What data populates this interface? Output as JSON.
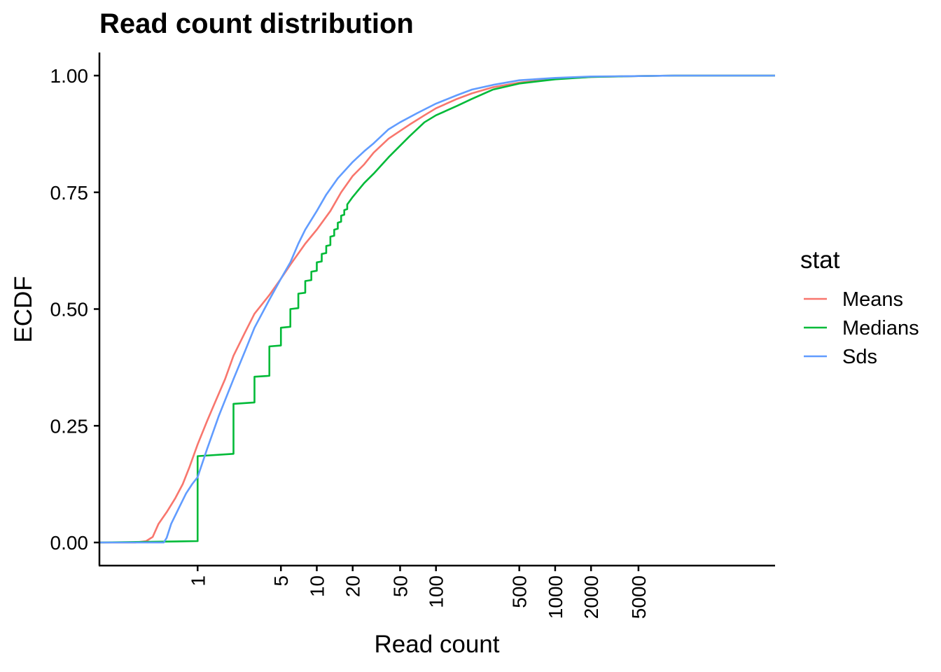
{
  "chart_data": {
    "type": "line",
    "title": "Read count distribution",
    "xlabel": "Read count",
    "ylabel": "ECDF",
    "x_scale": "log10",
    "xlim": [
      0.15,
      70000
    ],
    "ylim": [
      0,
      1
    ],
    "x_ticks": [
      {
        "value": 1,
        "label": "1"
      },
      {
        "value": 5,
        "label": "5"
      },
      {
        "value": 10,
        "label": "10"
      },
      {
        "value": 20,
        "label": "20"
      },
      {
        "value": 50,
        "label": "50"
      },
      {
        "value": 100,
        "label": "100"
      },
      {
        "value": 500,
        "label": "500"
      },
      {
        "value": 1000,
        "label": "1000"
      },
      {
        "value": 2000,
        "label": "2000"
      },
      {
        "value": 5000,
        "label": "5000"
      }
    ],
    "y_ticks": [
      {
        "value": 0,
        "label": "0.00"
      },
      {
        "value": 0.25,
        "label": "0.25"
      },
      {
        "value": 0.5,
        "label": "0.50"
      },
      {
        "value": 0.75,
        "label": "0.75"
      },
      {
        "value": 1,
        "label": "1.00"
      }
    ],
    "grid": false,
    "legend": {
      "title": "stat",
      "placement": "right"
    },
    "series": [
      {
        "name": "Means",
        "color": "#F8766D",
        "step": false,
        "points": [
          [
            0.15,
            0
          ],
          [
            0.3,
            0
          ],
          [
            0.37,
            0.003
          ],
          [
            0.42,
            0.012
          ],
          [
            0.47,
            0.04
          ],
          [
            0.55,
            0.065
          ],
          [
            0.65,
            0.095
          ],
          [
            0.75,
            0.125
          ],
          [
            0.85,
            0.16
          ],
          [
            1.0,
            0.21
          ],
          [
            1.2,
            0.26
          ],
          [
            1.4,
            0.3
          ],
          [
            1.7,
            0.35
          ],
          [
            2.0,
            0.4
          ],
          [
            2.5,
            0.45
          ],
          [
            3.0,
            0.49
          ],
          [
            4.0,
            0.53
          ],
          [
            5.0,
            0.565
          ],
          [
            6.0,
            0.595
          ],
          [
            8.0,
            0.64
          ],
          [
            10.0,
            0.67
          ],
          [
            13.0,
            0.71
          ],
          [
            16.0,
            0.75
          ],
          [
            20.0,
            0.785
          ],
          [
            25.0,
            0.81
          ],
          [
            30.0,
            0.835
          ],
          [
            40.0,
            0.865
          ],
          [
            60.0,
            0.895
          ],
          [
            80.0,
            0.915
          ],
          [
            100.0,
            0.93
          ],
          [
            150.0,
            0.95
          ],
          [
            200.0,
            0.962
          ],
          [
            300.0,
            0.975
          ],
          [
            500.0,
            0.985
          ],
          [
            1000.0,
            0.993
          ],
          [
            2000.0,
            0.997
          ],
          [
            5000.0,
            0.999
          ],
          [
            10000.0,
            1
          ],
          [
            70000.0,
            1
          ]
        ]
      },
      {
        "name": "Medians",
        "color": "#00BA38",
        "step": true,
        "points": [
          [
            0.15,
            0
          ],
          [
            1.0,
            0.003
          ],
          [
            1.0,
            0.185
          ],
          [
            2.0,
            0.19
          ],
          [
            2.0,
            0.297
          ],
          [
            3.0,
            0.3
          ],
          [
            3.0,
            0.355
          ],
          [
            4.0,
            0.357
          ],
          [
            4.0,
            0.42
          ],
          [
            5.0,
            0.422
          ],
          [
            5.0,
            0.46
          ],
          [
            6.0,
            0.462
          ],
          [
            6.0,
            0.5
          ],
          [
            7.0,
            0.502
          ],
          [
            7.0,
            0.533
          ],
          [
            8.0,
            0.535
          ],
          [
            8.0,
            0.56
          ],
          [
            9.0,
            0.562
          ],
          [
            9.0,
            0.58
          ],
          [
            10.0,
            0.582
          ],
          [
            10.0,
            0.6
          ],
          [
            11.0,
            0.602
          ],
          [
            11.0,
            0.618
          ],
          [
            12.0,
            0.62
          ],
          [
            12.0,
            0.635
          ],
          [
            13.0,
            0.637
          ],
          [
            13.0,
            0.655
          ],
          [
            14.0,
            0.657
          ],
          [
            14.0,
            0.67
          ],
          [
            15.0,
            0.672
          ],
          [
            15.0,
            0.685
          ],
          [
            16.0,
            0.687
          ],
          [
            16.0,
            0.7
          ],
          [
            17.0,
            0.702
          ],
          [
            17.0,
            0.712
          ],
          [
            18.0,
            0.714
          ],
          [
            18.0,
            0.724
          ],
          [
            20.0,
            0.74
          ],
          [
            25.0,
            0.77
          ],
          [
            30.0,
            0.79
          ],
          [
            40.0,
            0.825
          ],
          [
            60.0,
            0.87
          ],
          [
            80.0,
            0.9
          ],
          [
            100.0,
            0.915
          ],
          [
            150.0,
            0.935
          ],
          [
            200.0,
            0.95
          ],
          [
            300.0,
            0.97
          ],
          [
            500.0,
            0.983
          ],
          [
            1000.0,
            0.992
          ],
          [
            2000.0,
            0.997
          ],
          [
            5000.0,
            0.999
          ],
          [
            10000.0,
            1
          ],
          [
            70000.0,
            1
          ]
        ]
      },
      {
        "name": "Sds",
        "color": "#619CFF",
        "step": false,
        "points": [
          [
            0.15,
            0
          ],
          [
            0.52,
            0
          ],
          [
            0.55,
            0.01
          ],
          [
            0.6,
            0.04
          ],
          [
            0.7,
            0.075
          ],
          [
            0.8,
            0.105
          ],
          [
            0.9,
            0.125
          ],
          [
            1.0,
            0.14
          ],
          [
            1.2,
            0.2
          ],
          [
            1.5,
            0.27
          ],
          [
            2.0,
            0.35
          ],
          [
            2.5,
            0.41
          ],
          [
            3.0,
            0.46
          ],
          [
            4.0,
            0.52
          ],
          [
            5.0,
            0.565
          ],
          [
            6.0,
            0.6
          ],
          [
            7.0,
            0.64
          ],
          [
            8.0,
            0.67
          ],
          [
            10.0,
            0.71
          ],
          [
            12.0,
            0.745
          ],
          [
            15.0,
            0.78
          ],
          [
            20.0,
            0.815
          ],
          [
            25.0,
            0.838
          ],
          [
            30.0,
            0.855
          ],
          [
            40.0,
            0.885
          ],
          [
            50.0,
            0.9
          ],
          [
            70.0,
            0.92
          ],
          [
            100.0,
            0.94
          ],
          [
            150.0,
            0.958
          ],
          [
            200.0,
            0.97
          ],
          [
            300.0,
            0.98
          ],
          [
            500.0,
            0.99
          ],
          [
            1000.0,
            0.995
          ],
          [
            2000.0,
            0.998
          ],
          [
            5000.0,
            0.999
          ],
          [
            10000.0,
            1
          ],
          [
            70000.0,
            1
          ]
        ]
      }
    ]
  }
}
